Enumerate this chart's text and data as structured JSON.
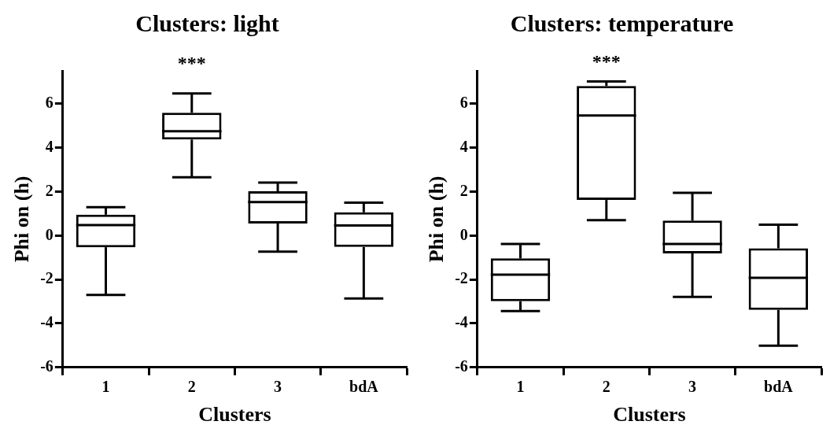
{
  "chart_data": [
    {
      "type": "box",
      "title": "Clusters: light",
      "xlabel": "Clusters",
      "ylabel": "Phi on (h)",
      "categories": [
        "1",
        "2",
        "3",
        "bdA"
      ],
      "boxes": [
        {
          "low": -2.7,
          "q1": -0.53,
          "median": 0.48,
          "q3": 0.95,
          "high": 1.29
        },
        {
          "low": 2.65,
          "q1": 4.37,
          "median": 4.75,
          "q3": 5.59,
          "high": 6.47
        },
        {
          "low": -0.73,
          "q1": 0.55,
          "median": 1.53,
          "q3": 2.02,
          "high": 2.41
        },
        {
          "low": -2.86,
          "q1": -0.52,
          "median": 0.46,
          "q3": 1.06,
          "high": 1.5
        }
      ],
      "ylim": [
        -6,
        7.5
      ],
      "yticks": [
        -6,
        -4,
        -2,
        0,
        2,
        4,
        6
      ],
      "annotations": [
        "***"
      ]
    },
    {
      "type": "box",
      "title": "Clusters: temperature",
      "xlabel": "Clusters",
      "ylabel": "Phi on (h)",
      "categories": [
        "1",
        "2",
        "3",
        "bdA"
      ],
      "boxes": [
        {
          "low": -3.44,
          "q1": -2.99,
          "median": -1.78,
          "q3": -1.04,
          "high": -0.38
        },
        {
          "low": 0.7,
          "q1": 1.62,
          "median": 5.47,
          "q3": 6.81,
          "high": 7.02
        },
        {
          "low": -2.79,
          "q1": -0.81,
          "median": -0.38,
          "q3": 0.68,
          "high": 1.95
        },
        {
          "low": -5.01,
          "q1": -3.38,
          "median": -1.92,
          "q3": -0.58,
          "high": 0.5
        }
      ],
      "ylim": [
        -6,
        7.5
      ],
      "yticks": [
        -6,
        -4,
        -2,
        0,
        2,
        4,
        6
      ],
      "annotations": [
        "***"
      ]
    }
  ]
}
